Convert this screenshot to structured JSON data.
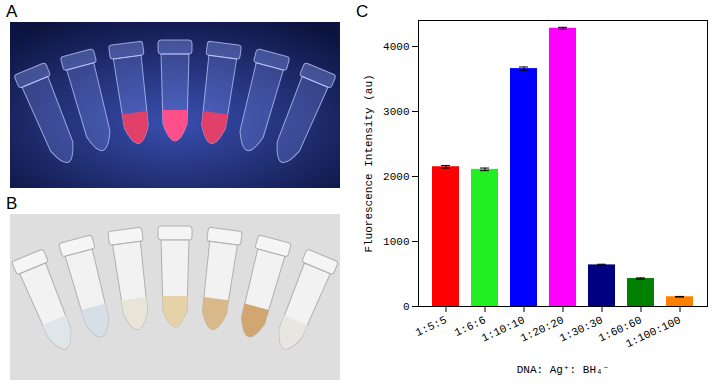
{
  "panel_labels": [
    "A",
    "B",
    "C"
  ],
  "chart_data": {
    "type": "bar",
    "categories": [
      "1:5:5",
      "1:6:6",
      "1:10:10",
      "1:20:20",
      "1:30:30",
      "1:60:60",
      "1:100:100"
    ],
    "values": [
      2150,
      2110,
      3660,
      4280,
      640,
      430,
      150
    ],
    "errors": [
      20,
      20,
      25,
      15,
      10,
      10,
      5
    ],
    "colors": [
      "#ff0000",
      "#22ee22",
      "#0000ff",
      "#ff00ff",
      "#000080",
      "#008000",
      "#ff8000"
    ],
    "ylabel": "Fluorescence Intensity (au)",
    "xlabel": "DNA: Ag⁺: BH₄⁻",
    "ylim": [
      0,
      4400
    ],
    "yticks": [
      0,
      1000,
      2000,
      3000,
      4000
    ],
    "grid": false
  }
}
